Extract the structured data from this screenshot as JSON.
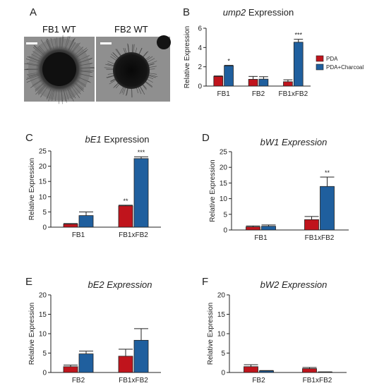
{
  "colors": {
    "pda": "#c0141c",
    "charcoal": "#1f5f9e"
  },
  "panel_a": {
    "letter": "A",
    "left_label": "FB1 WT",
    "right_label": "FB2 WT"
  },
  "chart_data": [
    {
      "panel": "B",
      "type": "bar",
      "title": "ump2 Expression",
      "title_italic_part": "ump2",
      "title_rest": " Expression",
      "ylabel": "Relative Expression",
      "ylim": [
        0,
        6
      ],
      "yticks": [
        0,
        2,
        4,
        6
      ],
      "categories": [
        "FB1",
        "FB2",
        "FB1xFB2"
      ],
      "series": [
        {
          "name": "PDA",
          "values": [
            1.0,
            0.7,
            0.45
          ],
          "errors": [
            0.05,
            0.3,
            0.2
          ]
        },
        {
          "name": "PDA+Charcoal",
          "values": [
            2.1,
            0.72,
            4.55
          ],
          "errors": [
            0.05,
            0.25,
            0.3
          ]
        }
      ],
      "annotations": [
        {
          "category": 0,
          "series": 1,
          "text": "*"
        },
        {
          "category": 2,
          "series": 1,
          "text": "***"
        }
      ],
      "legend": "right"
    },
    {
      "panel": "C",
      "type": "bar",
      "title": "bE1 Expression",
      "title_italic_part": "bE1",
      "title_rest": " Expression",
      "ylabel": "Relative Expression",
      "ylim": [
        0,
        25
      ],
      "yticks": [
        0,
        5,
        10,
        15,
        20,
        25
      ],
      "categories": [
        "FB1",
        "FB1xFB2"
      ],
      "series": [
        {
          "name": "PDA",
          "values": [
            1.0,
            7.0
          ],
          "errors": [
            0.2,
            0.2
          ]
        },
        {
          "name": "PDA+Charcoal",
          "values": [
            3.8,
            22.5
          ],
          "errors": [
            1.2,
            0.6
          ]
        }
      ],
      "annotations": [
        {
          "category": 1,
          "series": 0,
          "text": "**"
        },
        {
          "category": 1,
          "series": 1,
          "text": "***"
        }
      ]
    },
    {
      "panel": "D",
      "type": "bar",
      "title": "bW1 Expression",
      "title_italic_part": "bW1 Expression",
      "title_rest": "",
      "ylabel": "Relative Expression",
      "ylim": [
        0,
        25
      ],
      "yticks": [
        0,
        5,
        10,
        15,
        20,
        25
      ],
      "categories": [
        "FB1",
        "FB1xFB2"
      ],
      "series": [
        {
          "name": "PDA",
          "values": [
            1.0,
            3.3
          ],
          "errors": [
            0.3,
            1.0
          ]
        },
        {
          "name": "PDA+Charcoal",
          "values": [
            1.2,
            13.9
          ],
          "errors": [
            0.4,
            3.0
          ]
        }
      ],
      "annotations": [
        {
          "category": 1,
          "series": 1,
          "text": "**"
        }
      ]
    },
    {
      "panel": "E",
      "type": "bar",
      "title": "bE2 Expression",
      "title_italic_part": "bE2 Expression",
      "title_rest": "",
      "ylabel": "Relative Expression",
      "ylim": [
        0,
        20
      ],
      "yticks": [
        0,
        5,
        10,
        15,
        20
      ],
      "categories": [
        "FB2",
        "FB1xFB2"
      ],
      "series": [
        {
          "name": "PDA",
          "values": [
            1.5,
            4.2
          ],
          "errors": [
            0.4,
            1.8
          ]
        },
        {
          "name": "PDA+Charcoal",
          "values": [
            4.8,
            8.3
          ],
          "errors": [
            0.7,
            3.0
          ]
        }
      ],
      "annotations": []
    },
    {
      "panel": "F",
      "type": "bar",
      "title": "bW2 Expression",
      "title_italic_part": "bW2 Expression",
      "title_rest": "",
      "ylabel": "Relative Expression",
      "ylim": [
        0,
        20
      ],
      "yticks": [
        0,
        5,
        10,
        15,
        20
      ],
      "categories": [
        "FB2",
        "FB1xFB2"
      ],
      "series": [
        {
          "name": "PDA",
          "values": [
            1.5,
            1.0
          ],
          "errors": [
            0.5,
            0.3
          ]
        },
        {
          "name": "PDA+Charcoal",
          "values": [
            0.4,
            0.1
          ],
          "errors": [
            0.1,
            0.05
          ]
        }
      ],
      "annotations": []
    }
  ]
}
